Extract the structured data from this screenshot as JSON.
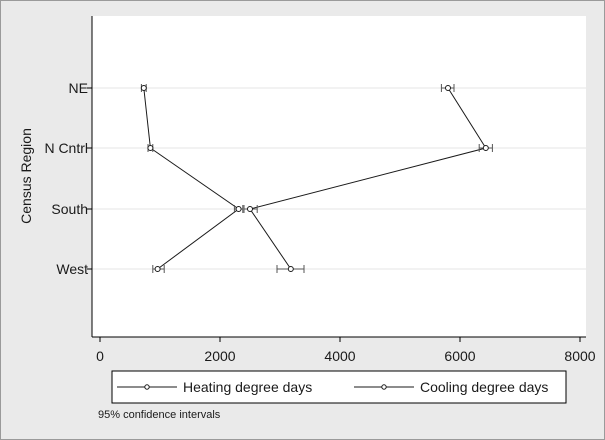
{
  "chart_data": {
    "type": "line",
    "ylabel": "Census Region",
    "xlabel": "",
    "xlim": [
      0,
      8000
    ],
    "xticks": [
      "0",
      "2000",
      "4000",
      "6000",
      "8000"
    ],
    "categories": [
      "NE",
      "N Cntrl",
      "South",
      "West"
    ],
    "grid": true,
    "legend_position": "bottom",
    "note": "95% confidence intervals",
    "series": [
      {
        "name": "Heating degree days",
        "values": [
          5800,
          6430,
          2500,
          3180
        ],
        "ci_low": [
          5690,
          6320,
          2400,
          2950
        ],
        "ci_high": [
          5900,
          6540,
          2620,
          3400
        ]
      },
      {
        "name": "Cooling degree days",
        "values": [
          730,
          840,
          2310,
          960
        ],
        "ci_low": [
          690,
          800,
          2240,
          880
        ],
        "ci_high": [
          770,
          880,
          2380,
          1070
        ]
      }
    ]
  },
  "colors": {
    "background": "#eaeaea",
    "plot_background": "#ffffff",
    "line": "#1a1a1a",
    "ci": "#555555",
    "grid": "#e4e4e4"
  }
}
